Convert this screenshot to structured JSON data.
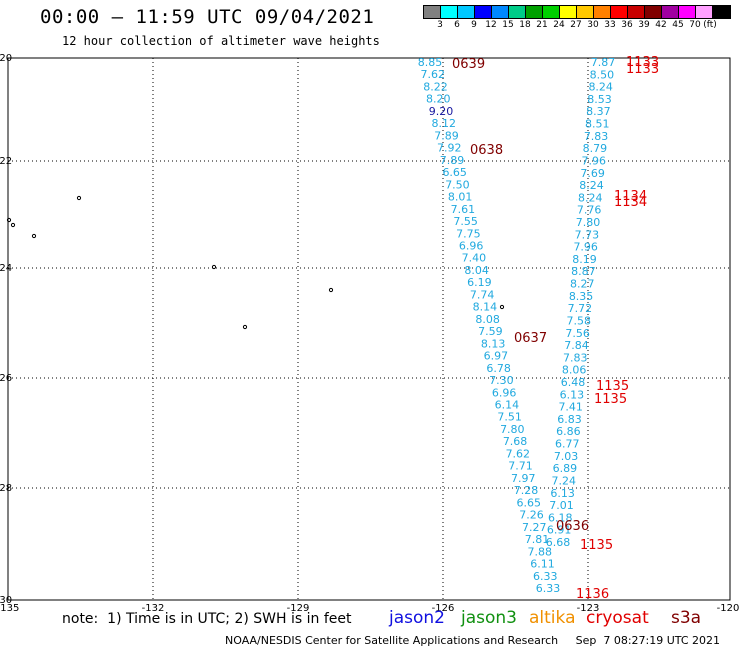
{
  "header": {
    "title": "00:00 – 11:59 UTC 09/04/2021",
    "subtitle": "12 hour collection of altimeter wave heights"
  },
  "legend": {
    "colors": [
      "#808080",
      "#00ffff",
      "#00c8ff",
      "#0000ff",
      "#0088ff",
      "#00cc88",
      "#00a000",
      "#00d000",
      "#ffff00",
      "#ffc800",
      "#ff8000",
      "#ff0000",
      "#c80000",
      "#800000",
      "#a000a0",
      "#ff00ff",
      "#ffa0ff",
      "#000000"
    ],
    "tick_labels": [
      "3",
      "6",
      "9",
      "12",
      "15",
      "18",
      "21",
      "24",
      "27",
      "30",
      "33",
      "36",
      "39",
      "42",
      "45",
      "70",
      "(ft)"
    ]
  },
  "axes": {
    "lat_labels": [
      "-20",
      "-22",
      "-24",
      "-26",
      "-28",
      "-30"
    ],
    "lon_labels": [
      "-135",
      "-132",
      "-129",
      "-126",
      "-123",
      "-120"
    ]
  },
  "islands": [
    [
      79,
      198
    ],
    [
      9,
      220
    ],
    [
      13,
      225
    ],
    [
      34,
      236
    ],
    [
      214,
      267
    ],
    [
      331,
      290
    ],
    [
      245,
      327
    ],
    [
      502,
      307
    ]
  ],
  "colors": {
    "swh": "#21a9df",
    "swh_dark": "#1818a0",
    "time_dark": "#800000",
    "time_red": "#e00000"
  },
  "track_left": {
    "values": [
      "8.85",
      "7.62",
      "8.22",
      "8.20",
      "9.20",
      "8.12",
      "7.89",
      "7.92",
      "7.89",
      "6.65",
      "7.50",
      "8.01",
      "7.61",
      "7.55",
      "7.75",
      "6.96",
      "7.40",
      "8.04",
      "6.19",
      "7.74",
      "8.14",
      "8.08",
      "7.59",
      "8.13",
      "6.97",
      "6.78",
      "7.30",
      "6.96",
      "6.14",
      "7.51",
      "7.80",
      "7.68",
      "7.62",
      "7.71",
      "7.97",
      "7.28",
      "6.65",
      "7.26",
      "7.27",
      "7.81",
      "7.88",
      "6.11",
      "6.33",
      "6.33"
    ]
  },
  "track_right": {
    "values": [
      "7.87",
      "8.50",
      "8.24",
      "8.53",
      "8.37",
      "8.51",
      "7.83",
      "8.79",
      "7.96",
      "7.69",
      "8.24",
      "8.24",
      "7.76",
      "7.80",
      "7.73",
      "7.96",
      "8.19",
      "8.87",
      "8.27",
      "8.35",
      "7.72",
      "7.58",
      "7.56",
      "7.84",
      "7.83",
      "8.06",
      "6.48",
      "6.13",
      "7.41",
      "6.83",
      "6.86",
      "6.77",
      "7.03",
      "6.89",
      "7.24",
      "6.13",
      "7.01",
      "6.18",
      "6.91",
      "6.68"
    ]
  },
  "times": [
    {
      "label": "0639",
      "tone": "dark"
    },
    {
      "label": "0638",
      "tone": "dark"
    },
    {
      "label": "0637",
      "tone": "dark"
    },
    {
      "label": "0636",
      "tone": "dark"
    },
    {
      "label": "1133",
      "tone": "red"
    },
    {
      "label": "1133",
      "tone": "red"
    },
    {
      "label": "1134",
      "tone": "red"
    },
    {
      "label": "1134",
      "tone": "red"
    },
    {
      "label": "1135",
      "tone": "red"
    },
    {
      "label": "1135",
      "tone": "red"
    },
    {
      "label": "1135",
      "tone": "red"
    },
    {
      "label": "1136",
      "tone": "red"
    }
  ],
  "footer": {
    "note": "note:  1) Time is in UTC; 2) SWH is in feet",
    "satellites": [
      {
        "name": "jason2",
        "color": "#1010e0"
      },
      {
        "name": "jason3",
        "color": "#109010"
      },
      {
        "name": "altika",
        "color": "#f09000"
      },
      {
        "name": "cryosat",
        "color": "#e00000"
      },
      {
        "name": "s3a",
        "color": "#800000"
      }
    ],
    "credit": "NOAA/NESDIS Center for Satellite Applications and Research     Sep  7 08:27:19 UTC 2021"
  }
}
